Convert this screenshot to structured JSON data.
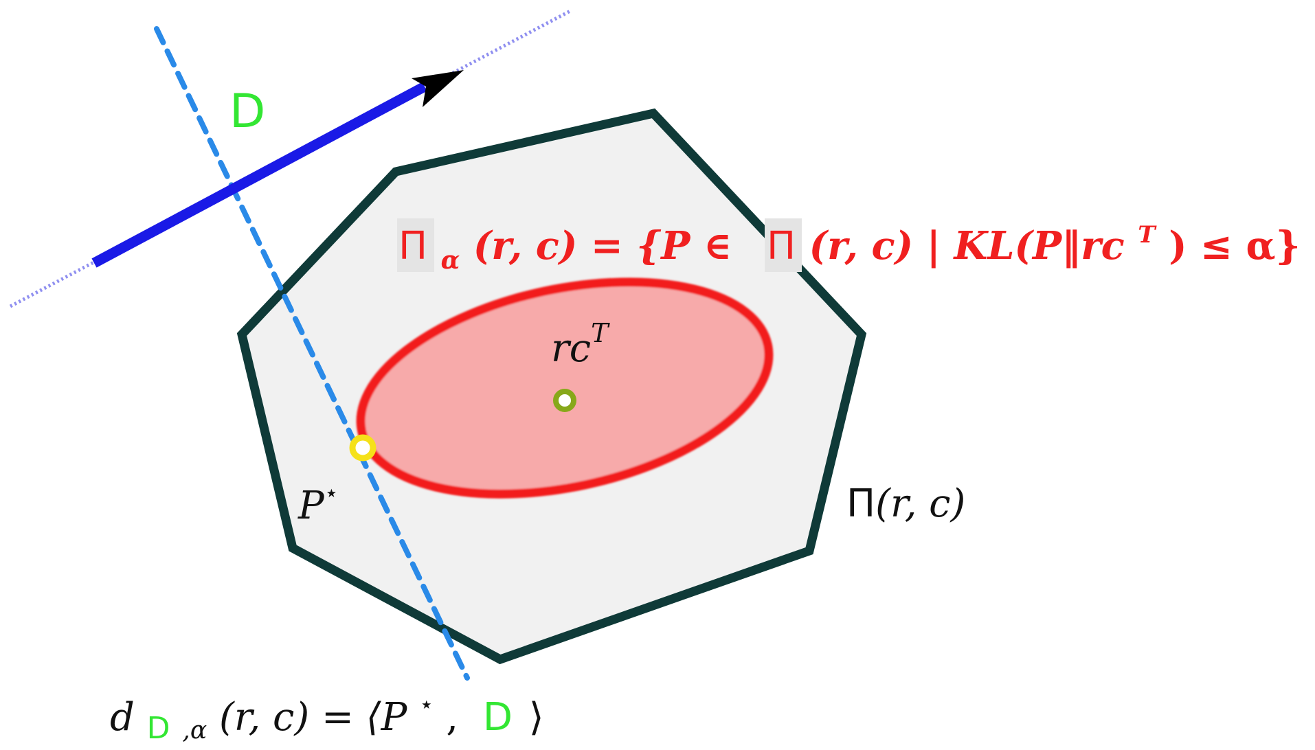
{
  "colors": {
    "polygon_stroke": "#0f3a38",
    "polygon_fill": "#f1f1f1",
    "ellipse_stroke": "#f21c1c",
    "ellipse_fill": "#f7aaaa",
    "arrow": "#1a1ae6",
    "dotted_line": "#2a8ae8",
    "direction_label": "#33e633",
    "point_pstar": "#f5e11a",
    "point_center": "#87a81a",
    "formula_red": "#f02020",
    "highlight": "#e4e4e4"
  },
  "labels": {
    "direction": "D",
    "center_point": "rc",
    "center_point_sup": "T",
    "optimal_point": "P",
    "optimal_point_sup": "⋆",
    "polytope_pi": "Π",
    "polytope_args": "(r, c)"
  },
  "set_definition": {
    "pi": "Π",
    "alpha_sub": "α",
    "args_lhs": "(r, c) = {P ∈ ",
    "pi2": "Π",
    "args_rhs": "(r, c) | KL(P‖rc",
    "sup": "T",
    "tail": ") ≤ α}"
  },
  "distance_formula": {
    "d": "d",
    "sub_D": "D",
    "sub_alpha": ",α",
    "middle": "(r, c) = ⟨P",
    "star": "⋆",
    "comma": ",",
    "D": "D",
    "close": "⟩"
  }
}
